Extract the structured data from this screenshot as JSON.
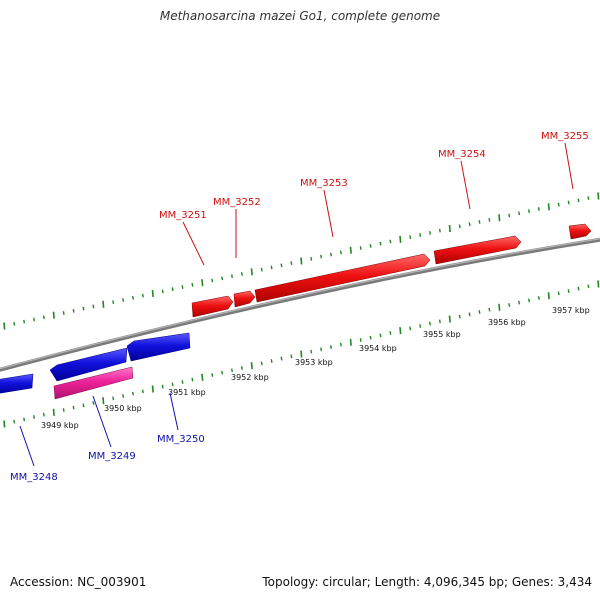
{
  "title": "Methanosarcina mazei Go1, complete genome",
  "footer": {
    "accession_label": "Accession:",
    "accession": "NC_003901",
    "summary": "Topology: circular; Length: 4,096,345 bp; Genes: 3,434"
  },
  "colors": {
    "backbone": "#8c8c8c",
    "forward_gene": "#ee1111",
    "reverse_gene": "#1111dd",
    "highlight_gene": "#ee2299",
    "tick": "#228822",
    "forward_label": "#cc1111",
    "reverse_label": "#1111aa"
  },
  "kbp_labels": [
    "3949 kbp",
    "3950 kbp",
    "3951 kbp",
    "3952 kbp",
    "3953 kbp",
    "3954 kbp",
    "3955 kbp",
    "3956 kbp",
    "3957 kbp"
  ],
  "genes": [
    {
      "name": "MM_3248",
      "strand": "reverse",
      "highlight": false
    },
    {
      "name": "MM_3249",
      "strand": "reverse",
      "highlight": true
    },
    {
      "name": "MM_3250",
      "strand": "reverse",
      "highlight": false
    },
    {
      "name": "MM_3251",
      "strand": "forward",
      "highlight": false
    },
    {
      "name": "MM_3252",
      "strand": "forward",
      "highlight": false
    },
    {
      "name": "MM_3253",
      "strand": "forward",
      "highlight": false
    },
    {
      "name": "MM_3254",
      "strand": "forward",
      "highlight": false
    },
    {
      "name": "MM_3255",
      "strand": "forward",
      "highlight": false
    }
  ]
}
